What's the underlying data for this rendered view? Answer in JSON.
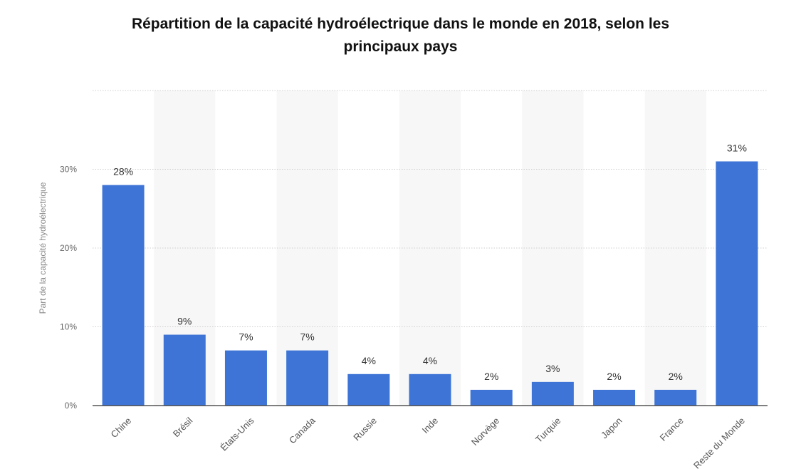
{
  "chart_data": {
    "type": "bar",
    "title_lines": [
      "Répartition de la capacité hydroélectrique dans le monde en 2018, selon les",
      "principaux pays"
    ],
    "ylabel": "Part de la capacité hydroélectrique",
    "categories": [
      "Chine",
      "Brésil",
      "États-Unis",
      "Canada",
      "Russie",
      "Inde",
      "Norvège",
      "Turquie",
      "Japon",
      "France",
      "Reste du Monde"
    ],
    "values": [
      28,
      9,
      7,
      7,
      4,
      4,
      2,
      3,
      2,
      2,
      31
    ],
    "value_labels": [
      "28%",
      "9%",
      "7%",
      "7%",
      "4%",
      "4%",
      "2%",
      "3%",
      "2%",
      "2%",
      "31%"
    ],
    "yticks": [
      0,
      10,
      20,
      30
    ],
    "ytick_labels": [
      "0%",
      "10%",
      "20%",
      "30%"
    ],
    "ylim": [
      0,
      40
    ],
    "grid": true,
    "bar_color": "#3d74d6",
    "band_color": "#f7f7f7"
  }
}
